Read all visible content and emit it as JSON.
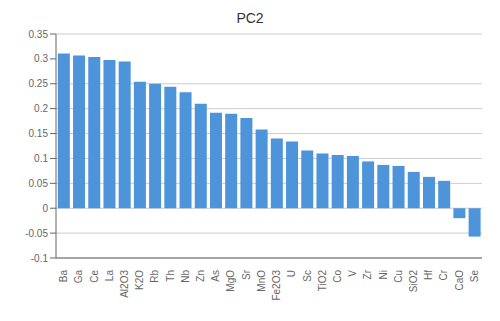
{
  "chart_data": {
    "type": "bar",
    "title": "PC2",
    "categories": [
      "Ba",
      "Ga",
      "Ce",
      "La",
      "Al2O3",
      "K2O",
      "Rb",
      "Th",
      "Nb",
      "Zn",
      "As",
      "MgO",
      "Sr",
      "MnO",
      "Fe2O3",
      "U",
      "Sc",
      "TiO2",
      "Co",
      "V",
      "Zr",
      "Ni",
      "Cu",
      "SiO2",
      "Hf",
      "Cr",
      "CaO",
      "Se"
    ],
    "values": [
      0.311,
      0.307,
      0.304,
      0.298,
      0.295,
      0.254,
      0.25,
      0.244,
      0.233,
      0.21,
      0.192,
      0.19,
      0.181,
      0.158,
      0.14,
      0.134,
      0.116,
      0.11,
      0.107,
      0.105,
      0.094,
      0.087,
      0.085,
      0.073,
      0.063,
      0.055,
      -0.02,
      -0.057
    ],
    "color": "#4d94db",
    "ylim": [
      -0.1,
      0.35
    ],
    "yticks": [
      -0.1,
      -0.05,
      0,
      0.05,
      0.1,
      0.15,
      0.2,
      0.25,
      0.3,
      0.35
    ],
    "grid": true
  }
}
